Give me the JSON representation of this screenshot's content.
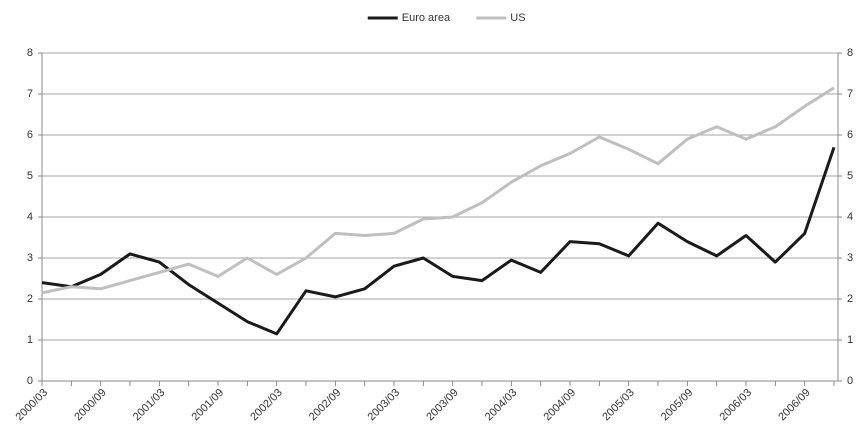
{
  "chart_data": {
    "type": "line",
    "categories": [
      "2000/03",
      null,
      "2000/09",
      null,
      "2001/03",
      null,
      "2001/09",
      null,
      "2002/03",
      null,
      "2002/09",
      null,
      "2003/03",
      null,
      "2003/09",
      null,
      "2004/03",
      null,
      "2004/09",
      null,
      "2005/03",
      null,
      "2005/09",
      null,
      "2006/03",
      null,
      "2006/09",
      null
    ],
    "series": [
      {
        "name": "Euro area",
        "color": "#1a1a1a",
        "values": [
          2.4,
          2.3,
          2.6,
          3.1,
          2.9,
          2.35,
          1.9,
          1.45,
          1.15,
          2.2,
          2.05,
          2.25,
          2.8,
          3.0,
          2.55,
          2.45,
          2.95,
          2.65,
          3.4,
          3.35,
          3.05,
          3.85,
          3.4,
          3.05,
          3.55,
          2.9,
          3.6,
          5.7
        ]
      },
      {
        "name": "US",
        "color": "#bfbfbf",
        "values": [
          2.15,
          2.3,
          2.25,
          2.45,
          2.65,
          2.85,
          2.55,
          3.0,
          2.6,
          3.0,
          3.6,
          3.55,
          3.6,
          3.95,
          4.0,
          4.35,
          4.85,
          5.25,
          5.55,
          5.95,
          5.65,
          5.3,
          5.9,
          6.2,
          5.9,
          6.2,
          6.7,
          7.15
        ]
      }
    ],
    "ylim": [
      0,
      8
    ],
    "yticks": [
      0,
      1,
      2,
      3,
      4,
      5,
      6,
      7,
      8
    ],
    "y2lim": [
      0,
      8
    ],
    "y2ticks": [
      0,
      1,
      2,
      3,
      4,
      5,
      6,
      7,
      8
    ],
    "grid": true,
    "legend": "top"
  }
}
